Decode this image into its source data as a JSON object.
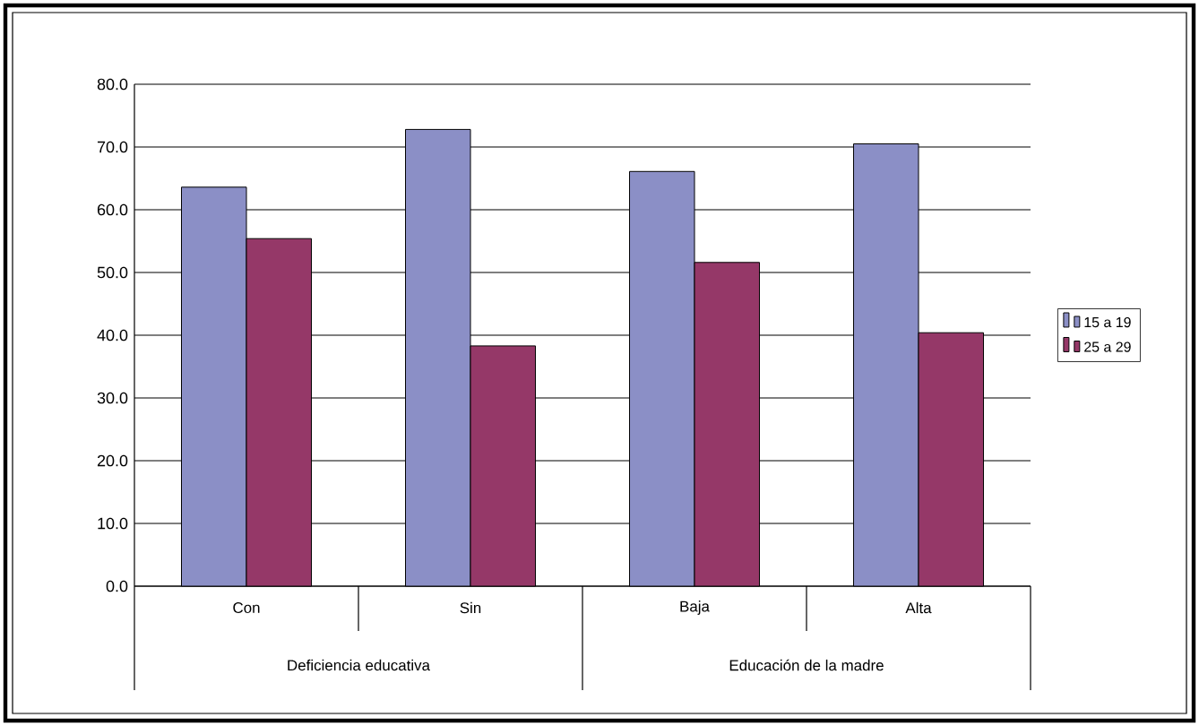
{
  "chart_data": {
    "type": "bar",
    "categories": [
      "Con",
      "Sin",
      "Baja",
      "Alta"
    ],
    "series": [
      {
        "name": "15 a 19",
        "color": "#8b8fc6",
        "values": [
          63.6,
          72.8,
          66.1,
          70.5
        ]
      },
      {
        "name": "25 a 29",
        "color": "#953868",
        "values": [
          55.4,
          38.3,
          51.6,
          40.4
        ]
      }
    ],
    "ylim": [
      0,
      80
    ],
    "yticks": [
      {
        "value": 0,
        "label": "0.0"
      },
      {
        "value": 10,
        "label": "10.0"
      },
      {
        "value": 20,
        "label": "20.0"
      },
      {
        "value": 30,
        "label": "30.0"
      },
      {
        "value": 40,
        "label": "40.0"
      },
      {
        "value": 50,
        "label": "50.0"
      },
      {
        "value": 60,
        "label": "60.0"
      },
      {
        "value": 70,
        "label": "70.0"
      },
      {
        "value": 80,
        "label": "80.0"
      }
    ],
    "grid": "y",
    "legend": "right",
    "annotations": [
      "Deficiencia educativa",
      "Educación de la madre"
    ]
  }
}
